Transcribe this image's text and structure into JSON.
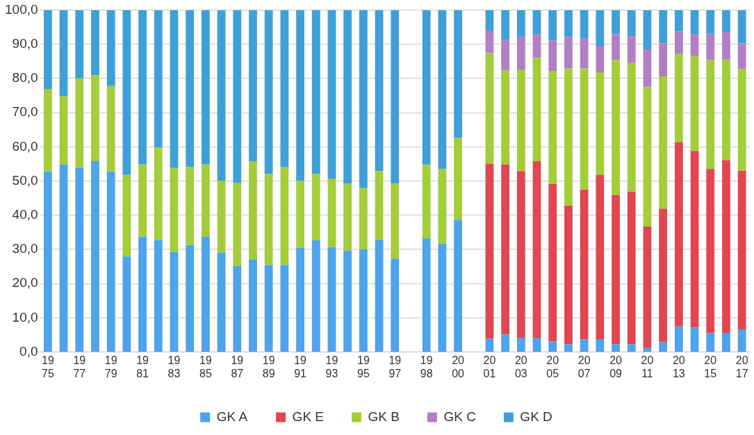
{
  "chart_data": {
    "type": "bar",
    "stacked": true,
    "categories": [
      "1975",
      null,
      "1977",
      null,
      "1979",
      null,
      "1981",
      null,
      "1983",
      null,
      "1985",
      null,
      "1987",
      null,
      "1989",
      null,
      "1991",
      null,
      "1993",
      null,
      "1995",
      null,
      "1997",
      null,
      "1998",
      null,
      "2000",
      null,
      "2001",
      null,
      "2003",
      null,
      "2005",
      null,
      "2007",
      null,
      "2009",
      null,
      "2011",
      null,
      "2013",
      null,
      "2015",
      null,
      "2017"
    ],
    "series": [
      {
        "name": "GK A",
        "color": "#4da3ec",
        "values": [
          52.8,
          54.8,
          53.9,
          55.8,
          52.8,
          27.9,
          33.7,
          32.7,
          29.3,
          31.3,
          33.7,
          29.1,
          25.1,
          27.1,
          25.4,
          25.4,
          30.4,
          32.7,
          30.7,
          29.7,
          30.0,
          32.9,
          27.3,
          null,
          33.2,
          31.6,
          38.6,
          null,
          3.9,
          5.1,
          4.2,
          4.2,
          3.1,
          2.3,
          3.7,
          3.8,
          2.3,
          2.3,
          1.2,
          2.9,
          7.5,
          7.2,
          5.5,
          5.6,
          6.6
        ]
      },
      {
        "name": "GK E",
        "color": "#e0474f",
        "values": [
          null,
          null,
          null,
          null,
          null,
          null,
          null,
          null,
          null,
          null,
          null,
          null,
          null,
          null,
          null,
          null,
          null,
          null,
          null,
          null,
          null,
          null,
          null,
          null,
          null,
          null,
          null,
          null,
          51.2,
          49.8,
          48.7,
          51.6,
          46.0,
          40.5,
          43.8,
          48.0,
          43.6,
          44.6,
          35.5,
          39.0,
          53.9,
          51.6,
          48.0,
          50.5,
          46.4
        ]
      },
      {
        "name": "GK B",
        "color": "#a5cc3a",
        "values": [
          24.1,
          20.0,
          26.1,
          25.1,
          25.0,
          23.9,
          21.1,
          27.1,
          24.5,
          22.8,
          21.1,
          21.0,
          24.3,
          28.7,
          26.7,
          28.6,
          19.7,
          19.4,
          20.0,
          19.5,
          17.9,
          20.0,
          21.9,
          null,
          21.5,
          21.9,
          24.0,
          null,
          32.3,
          27.5,
          29.7,
          30.2,
          33.1,
          40.1,
          35.4,
          30.0,
          39.5,
          37.6,
          40.8,
          38.7,
          25.9,
          27.7,
          31.9,
          29.4,
          29.7
        ]
      },
      {
        "name": "GK C",
        "color": "#b37fc4",
        "values": [
          null,
          null,
          null,
          null,
          null,
          null,
          null,
          null,
          null,
          null,
          null,
          null,
          null,
          null,
          null,
          null,
          null,
          null,
          null,
          null,
          null,
          null,
          null,
          null,
          null,
          null,
          null,
          null,
          6.6,
          8.9,
          9.4,
          6.8,
          8.9,
          9.2,
          8.8,
          7.7,
          7.6,
          7.8,
          11.0,
          9.7,
          6.4,
          6.3,
          7.6,
          8.1,
          7.6
        ]
      },
      {
        "name": "GK D",
        "color": "#3fa0d8",
        "values": [
          23.1,
          25.2,
          20.0,
          19.1,
          22.2,
          48.2,
          45.2,
          40.2,
          46.2,
          45.9,
          45.2,
          49.9,
          50.6,
          44.2,
          47.9,
          46.0,
          49.9,
          47.9,
          49.3,
          50.8,
          52.1,
          47.1,
          50.8,
          null,
          45.3,
          46.5,
          37.4,
          null,
          6.0,
          8.7,
          8.0,
          7.2,
          8.9,
          7.9,
          8.3,
          10.5,
          7.0,
          7.7,
          11.5,
          9.7,
          6.3,
          7.2,
          7.0,
          6.4,
          9.7
        ]
      }
    ],
    "ylim": [
      0,
      100
    ],
    "yticks": [
      {
        "value": 0,
        "label": "0,0"
      },
      {
        "value": 10,
        "label": "10,0"
      },
      {
        "value": 20,
        "label": "20,0"
      },
      {
        "value": 30,
        "label": "30,0"
      },
      {
        "value": 40,
        "label": "40,0"
      },
      {
        "value": 50,
        "label": "50,0"
      },
      {
        "value": 60,
        "label": "60,0"
      },
      {
        "value": 70,
        "label": "70,0"
      },
      {
        "value": 80,
        "label": "80,0"
      },
      {
        "value": 90,
        "label": "90,0"
      },
      {
        "value": 100,
        "label": "100,0"
      }
    ],
    "grid": "y",
    "legend": "bottom"
  }
}
